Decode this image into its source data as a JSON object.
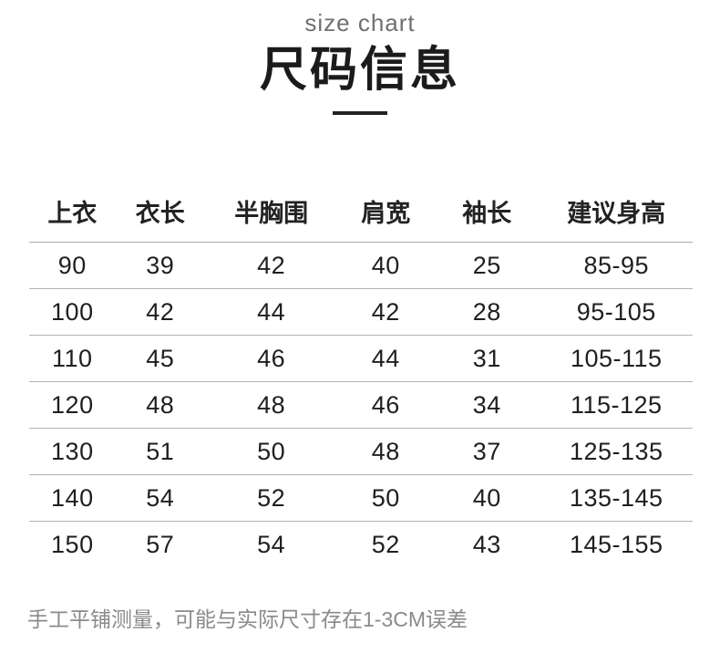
{
  "header": {
    "subtitle": "size chart",
    "title": "尺码信息"
  },
  "table": {
    "columns": [
      "上衣",
      "衣长",
      "半胸围",
      "肩宽",
      "袖长",
      "建议身高"
    ],
    "column_widths": [
      "13%",
      "13.5%",
      "20%",
      "14.5%",
      "16%",
      "23%"
    ],
    "rows": [
      [
        "90",
        "39",
        "42",
        "40",
        "25",
        "85-95"
      ],
      [
        "100",
        "42",
        "44",
        "42",
        "28",
        "95-105"
      ],
      [
        "110",
        "45",
        "46",
        "44",
        "31",
        "105-115"
      ],
      [
        "120",
        "48",
        "48",
        "46",
        "34",
        "115-125"
      ],
      [
        "130",
        "51",
        "50",
        "48",
        "37",
        "125-135"
      ],
      [
        "140",
        "54",
        "52",
        "50",
        "40",
        "135-145"
      ],
      [
        "150",
        "57",
        "54",
        "52",
        "43",
        "145-155"
      ]
    ]
  },
  "footer": {
    "note": "手工平铺测量，可能与实际尺寸存在1-3CM误差"
  },
  "colors": {
    "background": "#ffffff",
    "title": "#1b1b1d",
    "subtitle": "#707070",
    "table_text": "#1f1f1f",
    "divider": "#b3b3b3",
    "note": "#8a8a8a",
    "underline": "#232323"
  }
}
